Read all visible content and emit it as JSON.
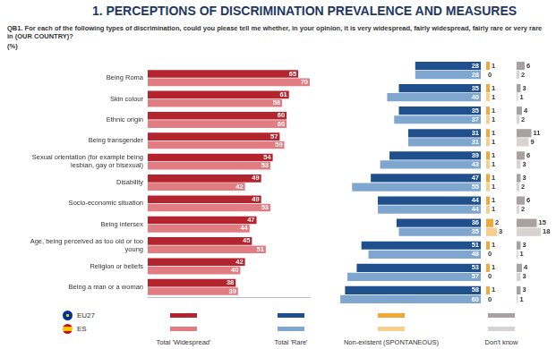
{
  "header": {
    "title": "1. PERCEPTIONS OF DISCRIMINATION PREVALENCE AND MEASURES",
    "question": "QB1. For each of the following types of discrimination, could you please tell me whether, in your opinion, it is very widespread, fairly widespread, fairly rare or very rare in (OUR COUNTRY)?",
    "unit": "(%)"
  },
  "chart_data": [
    {
      "type": "bar",
      "orientation": "horizontal",
      "title": "Total 'Widespread'",
      "categories": [
        "Being Roma",
        "Skin colour",
        "Ethnic origin",
        "Being transgender",
        "Sexual orientation (for example being lesbian, gay or bisexual)",
        "Disability",
        "Socio-economic situation",
        "Being intersex",
        "Age, being perceived as too old or too young",
        "Religion or beliefs",
        "Being a man or a woman"
      ],
      "series": [
        {
          "name": "EU27",
          "color": "#b3242e",
          "values": [
            65,
            61,
            60,
            57,
            54,
            49,
            49,
            47,
            45,
            42,
            38
          ]
        },
        {
          "name": "ES",
          "color": "#e07c82",
          "values": [
            70,
            58,
            60,
            59,
            53,
            42,
            53,
            44,
            51,
            40,
            39
          ]
        }
      ],
      "xlim": [
        0,
        70
      ],
      "grid": false,
      "data_labels": true,
      "tick_labels": "y"
    },
    {
      "type": "bar",
      "orientation": "horizontal",
      "title": "Total 'Rare'",
      "categories": [
        "Being Roma",
        "Skin colour",
        "Ethnic origin",
        "Being transgender",
        "Sexual orientation (for example being lesbian, gay or bisexual)",
        "Disability",
        "Socio-economic situation",
        "Being intersex",
        "Age, being perceived as too old or too young",
        "Religion or beliefs",
        "Being a man or a woman"
      ],
      "series": [
        {
          "name": "EU27",
          "color": "#1f4f8c",
          "values": [
            28,
            35,
            35,
            31,
            39,
            47,
            44,
            36,
            51,
            53,
            58
          ]
        },
        {
          "name": "ES",
          "color": "#7fa6cf",
          "values": [
            28,
            40,
            37,
            31,
            43,
            55,
            44,
            35,
            48,
            57,
            60
          ]
        }
      ],
      "xlim": [
        0,
        70
      ],
      "grid": false,
      "data_labels": true,
      "tick_labels": false
    },
    {
      "type": "bar",
      "orientation": "horizontal",
      "title": "Non-existent (SPONTANEOUS)",
      "categories": [
        "Being Roma",
        "Skin colour",
        "Ethnic origin",
        "Being transgender",
        "Sexual orientation (for example being lesbian, gay or bisexual)",
        "Disability",
        "Socio-economic situation",
        "Being intersex",
        "Age, being perceived as too old or too young",
        "Religion or beliefs",
        "Being a man or a woman"
      ],
      "series": [
        {
          "name": "EU27",
          "color": "#f0a837",
          "values": [
            1,
            1,
            1,
            1,
            1,
            1,
            1,
            2,
            1,
            1,
            1
          ]
        },
        {
          "name": "ES",
          "color": "#f6cf8c",
          "values": [
            0,
            1,
            1,
            1,
            1,
            1,
            1,
            3,
            0,
            0,
            0
          ]
        }
      ],
      "xlim": [
        0,
        5
      ],
      "grid": false,
      "data_labels": true,
      "tick_labels": false
    },
    {
      "type": "bar",
      "orientation": "horizontal",
      "title": "Don't know",
      "categories": [
        "Being Roma",
        "Skin colour",
        "Ethnic origin",
        "Being transgender",
        "Sexual orientation (for example being lesbian, gay or bisexual)",
        "Disability",
        "Socio-economic situation",
        "Being intersex",
        "Age, being perceived as too old or too young",
        "Religion or beliefs",
        "Being a man or a woman"
      ],
      "series": [
        {
          "name": "EU27",
          "color": "#a9a1a1",
          "values": [
            6,
            3,
            4,
            11,
            6,
            3,
            6,
            15,
            3,
            4,
            3
          ]
        },
        {
          "name": "ES",
          "color": "#d8d2d2",
          "values": [
            2,
            1,
            2,
            9,
            3,
            2,
            2,
            18,
            1,
            3,
            1
          ]
        }
      ],
      "xlim": [
        0,
        20
      ],
      "grid": false,
      "data_labels": true,
      "tick_labels": false
    }
  ]
}
